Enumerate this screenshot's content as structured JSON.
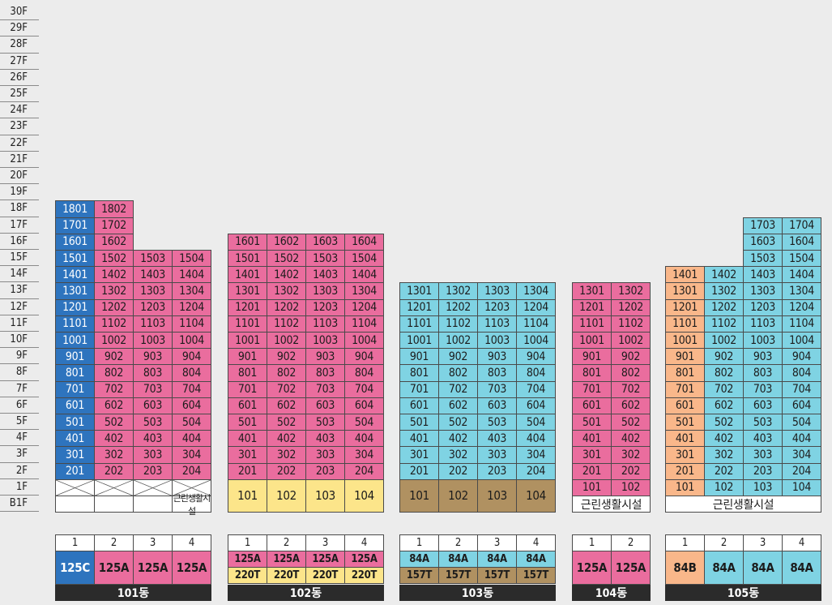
{
  "floors": [
    "30F",
    "29F",
    "28F",
    "27F",
    "26F",
    "25F",
    "24F",
    "23F",
    "22F",
    "21F",
    "20F",
    "19F",
    "18F",
    "17F",
    "16F",
    "15F",
    "14F",
    "13F",
    "12F",
    "11F",
    "10F",
    "9F",
    "8F",
    "7F",
    "6F",
    "5F",
    "4F",
    "3F",
    "2F",
    "1F",
    "B1F"
  ],
  "colors": {
    "blue": "#2e74be",
    "pink": "#ea6d9e",
    "cyan": "#7fd3e3",
    "orange": "#f9b78a",
    "yellow": "#fce58a",
    "brown": "#b09161"
  },
  "buildings": [
    {
      "name": "101동",
      "line_numbers": [
        "1",
        "2",
        "3",
        "4"
      ],
      "types": [
        {
          "label": "125C",
          "color": "blue"
        },
        {
          "label": "125A",
          "color": "pink"
        },
        {
          "label": "125A",
          "color": "pink"
        },
        {
          "label": "125A",
          "color": "pink"
        }
      ],
      "lines": [
        {
          "top_floor": 18,
          "min_floor": 2,
          "color": "blue"
        },
        {
          "top_floor": 18,
          "min_floor": 2,
          "color": "pink"
        },
        {
          "top_floor": 15,
          "min_floor": 2,
          "color": "pink"
        },
        {
          "top_floor": 15,
          "min_floor": 2,
          "color": "pink"
        }
      ],
      "ground": {
        "kind": "pilotis"
      },
      "basement": {
        "label": "근린생활시설",
        "col_start": 3
      }
    },
    {
      "name": "102동",
      "line_numbers": [
        "1",
        "2",
        "3",
        "4"
      ],
      "types": [
        {
          "label": "125A",
          "sub": "220T",
          "color": "pink",
          "sub_color": "yellow"
        },
        {
          "label": "125A",
          "sub": "220T",
          "color": "pink",
          "sub_color": "yellow"
        },
        {
          "label": "125A",
          "sub": "220T",
          "color": "pink",
          "sub_color": "yellow"
        },
        {
          "label": "125A",
          "sub": "220T",
          "color": "pink",
          "sub_color": "yellow"
        }
      ],
      "lines": [
        {
          "top_floor": 16,
          "min_floor": 2,
          "color": "pink"
        },
        {
          "top_floor": 16,
          "min_floor": 2,
          "color": "pink"
        },
        {
          "top_floor": 16,
          "min_floor": 2,
          "color": "pink"
        },
        {
          "top_floor": 16,
          "min_floor": 2,
          "color": "pink"
        }
      ],
      "ground": {
        "kind": "duplex",
        "color": "yellow",
        "units": [
          "101",
          "102",
          "103",
          "104"
        ]
      }
    },
    {
      "name": "103동",
      "line_numbers": [
        "1",
        "2",
        "3",
        "4"
      ],
      "types": [
        {
          "label": "84A",
          "sub": "157T",
          "color": "cyan",
          "sub_color": "brown"
        },
        {
          "label": "84A",
          "sub": "157T",
          "color": "cyan",
          "sub_color": "brown"
        },
        {
          "label": "84A",
          "sub": "157T",
          "color": "cyan",
          "sub_color": "brown"
        },
        {
          "label": "84A",
          "sub": "157T",
          "color": "cyan",
          "sub_color": "brown"
        }
      ],
      "lines": [
        {
          "top_floor": 13,
          "min_floor": 2,
          "color": "cyan"
        },
        {
          "top_floor": 13,
          "min_floor": 2,
          "color": "cyan"
        },
        {
          "top_floor": 13,
          "min_floor": 2,
          "color": "cyan"
        },
        {
          "top_floor": 13,
          "min_floor": 2,
          "color": "cyan"
        }
      ],
      "ground": {
        "kind": "duplex",
        "color": "brown",
        "units": [
          "101",
          "102",
          "103",
          "104"
        ]
      }
    },
    {
      "name": "104동",
      "line_numbers": [
        "1",
        "2"
      ],
      "types": [
        {
          "label": "125A",
          "color": "pink"
        },
        {
          "label": "125A",
          "color": "pink"
        }
      ],
      "lines": [
        {
          "top_floor": 13,
          "min_floor": 1,
          "color": "pink"
        },
        {
          "top_floor": 13,
          "min_floor": 1,
          "color": "pink"
        }
      ],
      "basement": {
        "label": "근린생활시설",
        "col_start": 0
      }
    },
    {
      "name": "105동",
      "line_numbers": [
        "1",
        "2",
        "3",
        "4"
      ],
      "types": [
        {
          "label": "84B",
          "color": "orange"
        },
        {
          "label": "84A",
          "color": "cyan"
        },
        {
          "label": "84A",
          "color": "cyan"
        },
        {
          "label": "84A",
          "color": "cyan"
        }
      ],
      "lines": [
        {
          "top_floor": 14,
          "min_floor": 1,
          "color": "orange"
        },
        {
          "top_floor": 14,
          "min_floor": 1,
          "color": "cyan"
        },
        {
          "top_floor": 17,
          "min_floor": 1,
          "color": "cyan"
        },
        {
          "top_floor": 17,
          "min_floor": 1,
          "color": "cyan"
        }
      ],
      "basement": {
        "label": "근린생활시설",
        "col_start": 0
      }
    }
  ]
}
